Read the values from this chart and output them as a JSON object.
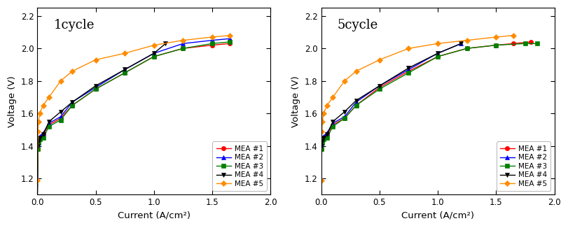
{
  "cycle1": {
    "title": "1cycle",
    "mea1": {
      "x": [
        0.0,
        0.005,
        0.01,
        0.02,
        0.05,
        0.1,
        0.2,
        0.3,
        0.5,
        0.75,
        1.0,
        1.25,
        1.5,
        1.65
      ],
      "y": [
        1.08,
        1.38,
        1.43,
        1.45,
        1.47,
        1.53,
        1.57,
        1.65,
        1.75,
        1.85,
        1.95,
        2.0,
        2.02,
        2.03
      ],
      "color": "#ff0000",
      "marker": "o",
      "label": "MEA #1"
    },
    "mea2": {
      "x": [
        0.0,
        0.005,
        0.01,
        0.02,
        0.05,
        0.1,
        0.2,
        0.3,
        0.5,
        0.75,
        1.0,
        1.25,
        1.5,
        1.65
      ],
      "y": [
        1.08,
        1.41,
        1.44,
        1.46,
        1.48,
        1.54,
        1.58,
        1.67,
        1.76,
        1.87,
        1.97,
        2.03,
        2.05,
        2.06
      ],
      "color": "#0000ff",
      "marker": "^",
      "label": "MEA #2"
    },
    "mea3": {
      "x": [
        0.0,
        0.005,
        0.01,
        0.02,
        0.05,
        0.1,
        0.2,
        0.3,
        0.5,
        0.75,
        1.0,
        1.25,
        1.5,
        1.65
      ],
      "y": [
        1.08,
        1.38,
        1.42,
        1.44,
        1.45,
        1.52,
        1.56,
        1.65,
        1.75,
        1.85,
        1.95,
        2.0,
        2.03,
        2.04
      ],
      "color": "#008000",
      "marker": "s",
      "label": "MEA #3"
    },
    "mea4": {
      "x": [
        0.0,
        0.005,
        0.01,
        0.02,
        0.05,
        0.1,
        0.2,
        0.3,
        0.5,
        0.75,
        1.0,
        1.1
      ],
      "y": [
        1.08,
        1.4,
        1.43,
        1.45,
        1.47,
        1.55,
        1.61,
        1.67,
        1.77,
        1.87,
        1.97,
        2.03
      ],
      "color": "#000000",
      "marker": "v",
      "label": "MEA #4"
    },
    "mea5": {
      "x": [
        0.0,
        0.005,
        0.01,
        0.02,
        0.05,
        0.1,
        0.2,
        0.3,
        0.5,
        0.75,
        1.0,
        1.25,
        1.5,
        1.65
      ],
      "y": [
        1.19,
        1.49,
        1.55,
        1.6,
        1.65,
        1.7,
        1.8,
        1.86,
        1.93,
        1.97,
        2.02,
        2.05,
        2.07,
        2.08
      ],
      "color": "#ff8c00",
      "marker": "D",
      "label": "MEA #5"
    }
  },
  "cycle5": {
    "title": "5cycle",
    "mea1": {
      "x": [
        0.0,
        0.005,
        0.01,
        0.02,
        0.05,
        0.1,
        0.2,
        0.3,
        0.5,
        0.75,
        1.0,
        1.25,
        1.5,
        1.65,
        1.8
      ],
      "y": [
        1.08,
        1.38,
        1.43,
        1.45,
        1.47,
        1.53,
        1.57,
        1.65,
        1.76,
        1.86,
        1.95,
        2.0,
        2.02,
        2.03,
        2.04
      ],
      "color": "#ff0000",
      "marker": "o",
      "label": "MEA #1"
    },
    "mea2": {
      "x": [
        0.0,
        0.005,
        0.01,
        0.02,
        0.05,
        0.1,
        0.2,
        0.3,
        0.5,
        0.75,
        1.0,
        1.2
      ],
      "y": [
        1.08,
        1.41,
        1.44,
        1.46,
        1.48,
        1.54,
        1.58,
        1.67,
        1.77,
        1.87,
        1.97,
        2.03
      ],
      "color": "#0000ff",
      "marker": "^",
      "label": "MEA #2"
    },
    "mea3": {
      "x": [
        0.0,
        0.005,
        0.01,
        0.02,
        0.05,
        0.1,
        0.2,
        0.3,
        0.5,
        0.75,
        1.0,
        1.25,
        1.5,
        1.75,
        1.85
      ],
      "y": [
        1.08,
        1.38,
        1.42,
        1.44,
        1.45,
        1.52,
        1.57,
        1.65,
        1.75,
        1.85,
        1.95,
        2.0,
        2.02,
        2.03,
        2.03
      ],
      "color": "#008000",
      "marker": "s",
      "label": "MEA #3"
    },
    "mea4": {
      "x": [
        0.0,
        0.005,
        0.01,
        0.02,
        0.05,
        0.1,
        0.2,
        0.3,
        0.5,
        0.75,
        1.0,
        1.2
      ],
      "y": [
        1.08,
        1.4,
        1.43,
        1.45,
        1.47,
        1.55,
        1.61,
        1.68,
        1.77,
        1.88,
        1.97,
        2.03
      ],
      "color": "#000000",
      "marker": "v",
      "label": "MEA #4"
    },
    "mea5": {
      "x": [
        0.0,
        0.005,
        0.01,
        0.02,
        0.05,
        0.1,
        0.2,
        0.3,
        0.5,
        0.75,
        1.0,
        1.25,
        1.5,
        1.65
      ],
      "y": [
        1.19,
        1.49,
        1.55,
        1.6,
        1.65,
        1.7,
        1.8,
        1.86,
        1.93,
        2.0,
        2.03,
        2.05,
        2.07,
        2.08
      ],
      "color": "#ff8c00",
      "marker": "D",
      "label": "MEA #5"
    }
  },
  "xlabel": "Current (A/cm²)",
  "ylabel": "Voltage (V)",
  "xlim": [
    0.0,
    2.0
  ],
  "ylim": [
    1.1,
    2.25
  ],
  "xticks": [
    0.0,
    0.5,
    1.0,
    1.5,
    2.0
  ],
  "yticks": [
    1.2,
    1.4,
    1.6,
    1.8,
    2.0,
    2.2
  ],
  "legend_loc": "lower right",
  "bg_color": "#ffffff",
  "figsize": [
    8.12,
    3.26
  ],
  "dpi": 100
}
